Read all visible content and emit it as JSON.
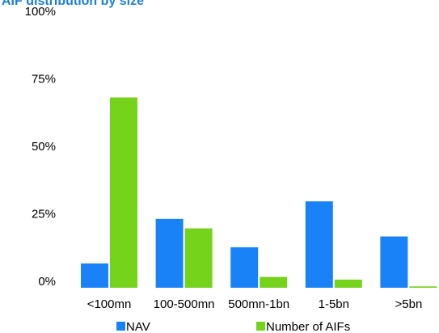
{
  "chart_data": {
    "type": "bar",
    "title": "AIF distribution by size",
    "xlabel": "",
    "ylabel": "",
    "categories": [
      "<100mn",
      "100-500mn",
      "500mn-1bn",
      "1-5bn",
      ">5bn"
    ],
    "ylim": [
      0,
      100
    ],
    "yticks": [
      "0%",
      "25%",
      "50%",
      "75%",
      "100%"
    ],
    "grid": false,
    "legend_position": "bottom",
    "series": [
      {
        "name": "NAV",
        "color": "#1a82f7",
        "values": [
          9,
          25.5,
          15,
          32,
          19
        ]
      },
      {
        "name": "Number of AIFs",
        "color": "#76d31c",
        "values": [
          70.5,
          22,
          4,
          3,
          0.5
        ]
      }
    ]
  }
}
